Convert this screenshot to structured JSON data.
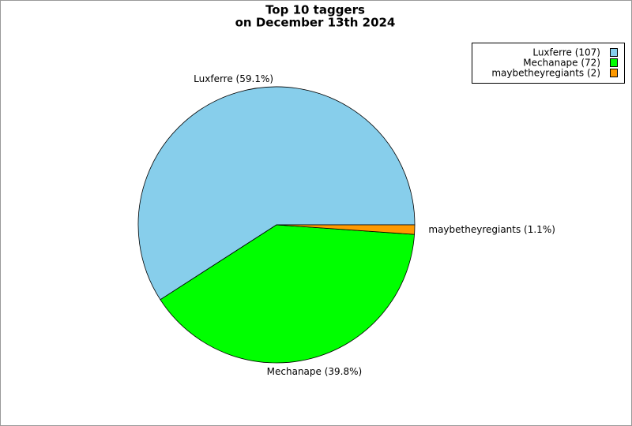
{
  "chart_data": {
    "type": "pie",
    "title": "Top 10 taggers",
    "subtitle": "on December 13th 2024",
    "categories": [
      "Luxferre",
      "Mechanape",
      "maybetheyregiants"
    ],
    "values": [
      107,
      72,
      2
    ],
    "value_labels": [
      "Luxferre (107)",
      "Mechanape (72)",
      "maybetheyregiants (2)"
    ],
    "slice_labels": [
      "Luxferre (59.1%)",
      "Mechanape (39.8%)",
      "maybetheyregiants (1.1%)"
    ],
    "colors": [
      "#87ceeb",
      "#00ff00",
      "#ff9900"
    ],
    "legend": "upper right"
  }
}
